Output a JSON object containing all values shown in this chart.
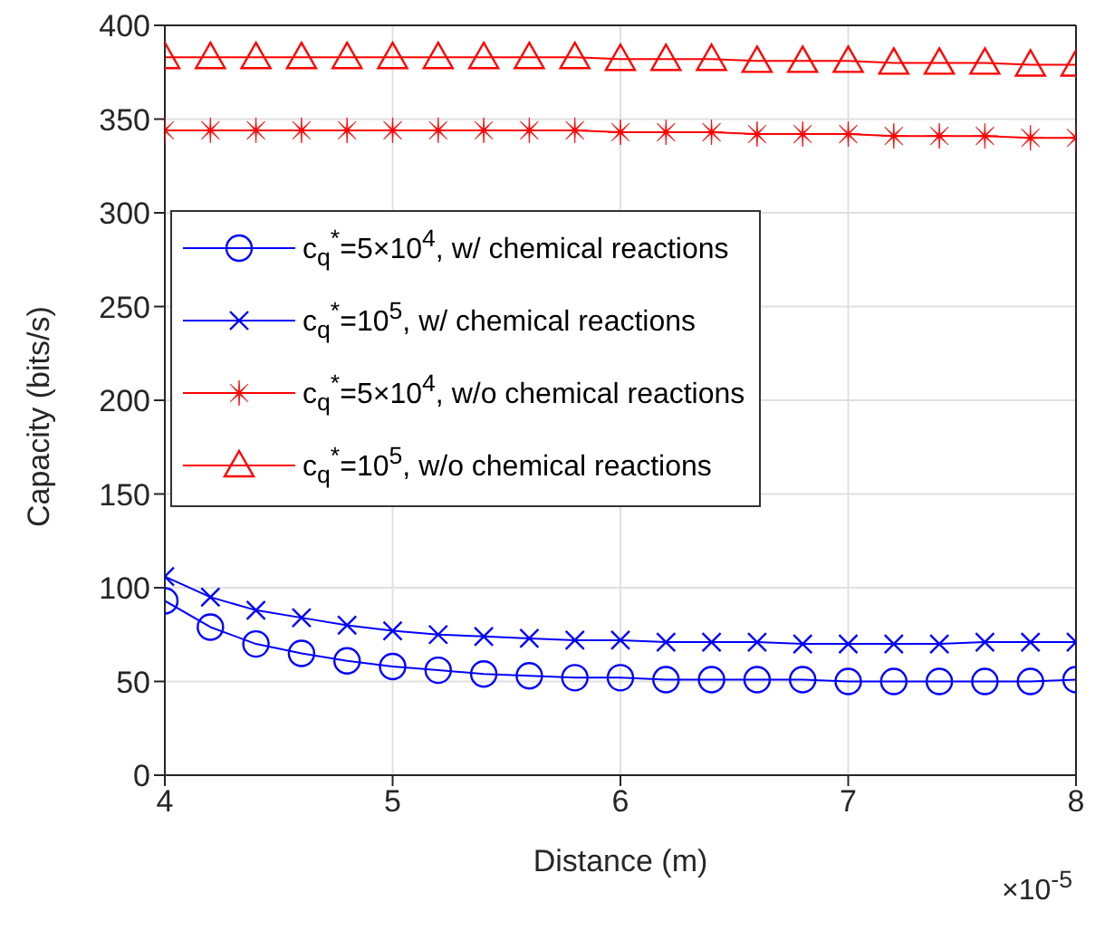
{
  "chart_data": {
    "type": "line",
    "xlabel": "Distance (m)",
    "ylabel": "Capacity (bits/s)",
    "annotations": [
      "×10$^{-5}$"
    ],
    "x": [
      4,
      4.2,
      4.4,
      4.6,
      4.8,
      5,
      5.2,
      5.4,
      5.6,
      5.8,
      6,
      6.2,
      6.4,
      6.6,
      6.8,
      7,
      7.2,
      7.4,
      7.6,
      7.8,
      8
    ],
    "xlim": [
      4,
      8
    ],
    "xticks": [
      4,
      5,
      6,
      7,
      8
    ],
    "ylim": [
      0,
      400
    ],
    "yticks": [
      0,
      50,
      100,
      150,
      200,
      250,
      300,
      350,
      400
    ],
    "grid": true,
    "legend": "top left",
    "series": [
      {
        "name": "c$_{q}$$^{*}$=5×10$^{4}$, w/ chemical reactions",
        "color": "#0000ff",
        "marker": "circle",
        "values": [
          93,
          79,
          70,
          65,
          61,
          58,
          56,
          54,
          53,
          52,
          52,
          51,
          51,
          51,
          51,
          50,
          50,
          50,
          50,
          50,
          51
        ]
      },
      {
        "name": "c$_{q}$$^{*}$=10$^{5}$, w/ chemical reactions",
        "color": "#0000ff",
        "marker": "cross",
        "values": [
          106,
          95,
          88,
          84,
          80,
          77,
          75,
          74,
          73,
          72,
          72,
          71,
          71,
          71,
          70,
          70,
          70,
          70,
          71,
          71,
          71
        ]
      },
      {
        "name": "c$_{q}$$^{*}$=5×10$^{4}$, w/o chemical reactions",
        "color": "#ff0000",
        "marker": "star",
        "values": [
          344,
          344,
          344,
          344,
          344,
          344,
          344,
          344,
          344,
          344,
          343,
          343,
          343,
          342,
          342,
          342,
          341,
          341,
          341,
          340,
          340
        ]
      },
      {
        "name": "c$_{q}$$^{*}$=10$^{5}$, w/o chemical reactions",
        "color": "#ff0000",
        "marker": "triangle",
        "values": [
          383,
          383,
          383,
          383,
          383,
          383,
          383,
          383,
          383,
          383,
          382,
          382,
          382,
          381,
          381,
          381,
          380,
          380,
          380,
          379,
          379
        ]
      }
    ]
  }
}
